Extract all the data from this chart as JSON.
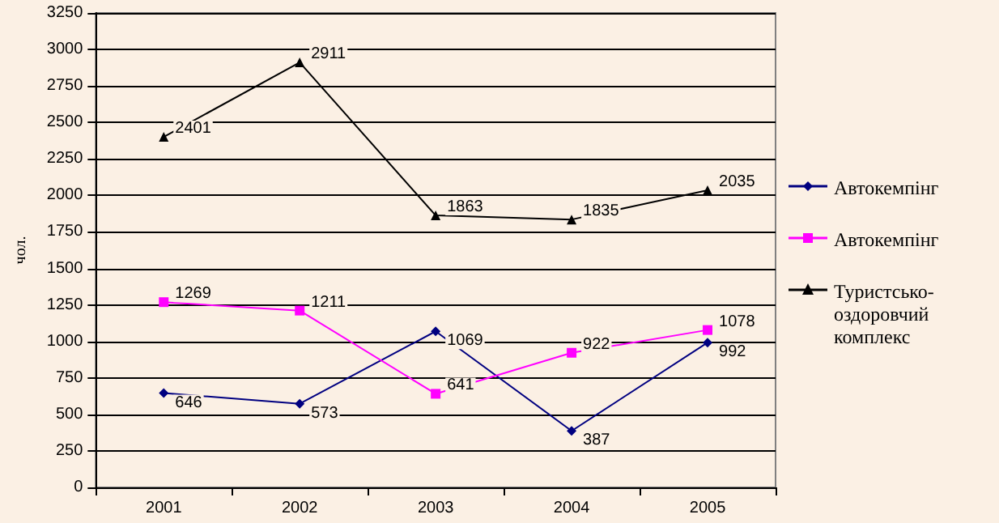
{
  "chart_data": {
    "type": "line",
    "ylabel": "чол.",
    "categories": [
      "2001",
      "2002",
      "2003",
      "2004",
      "2005"
    ],
    "series": [
      {
        "name": "Автокемпінг",
        "color": "#000080",
        "marker": "diamond",
        "values": [
          646,
          573,
          1069,
          387,
          992
        ]
      },
      {
        "name": "Автокемпінг",
        "color": "#ff00ff",
        "marker": "square",
        "values": [
          1269,
          1211,
          641,
          922,
          1078
        ]
      },
      {
        "name": "Туристсько-оздоровчий комплекс",
        "color": "#000000",
        "marker": "triangle",
        "values": [
          2401,
          2911,
          1863,
          1835,
          2035
        ]
      }
    ],
    "ylim": [
      0,
      3250
    ],
    "yticks": [
      0,
      250,
      500,
      750,
      1000,
      1250,
      1500,
      1750,
      2000,
      2250,
      2500,
      2750,
      3000,
      3250
    ],
    "grid": "y",
    "legend": "right",
    "data_labels": true,
    "line_style": "solid"
  }
}
